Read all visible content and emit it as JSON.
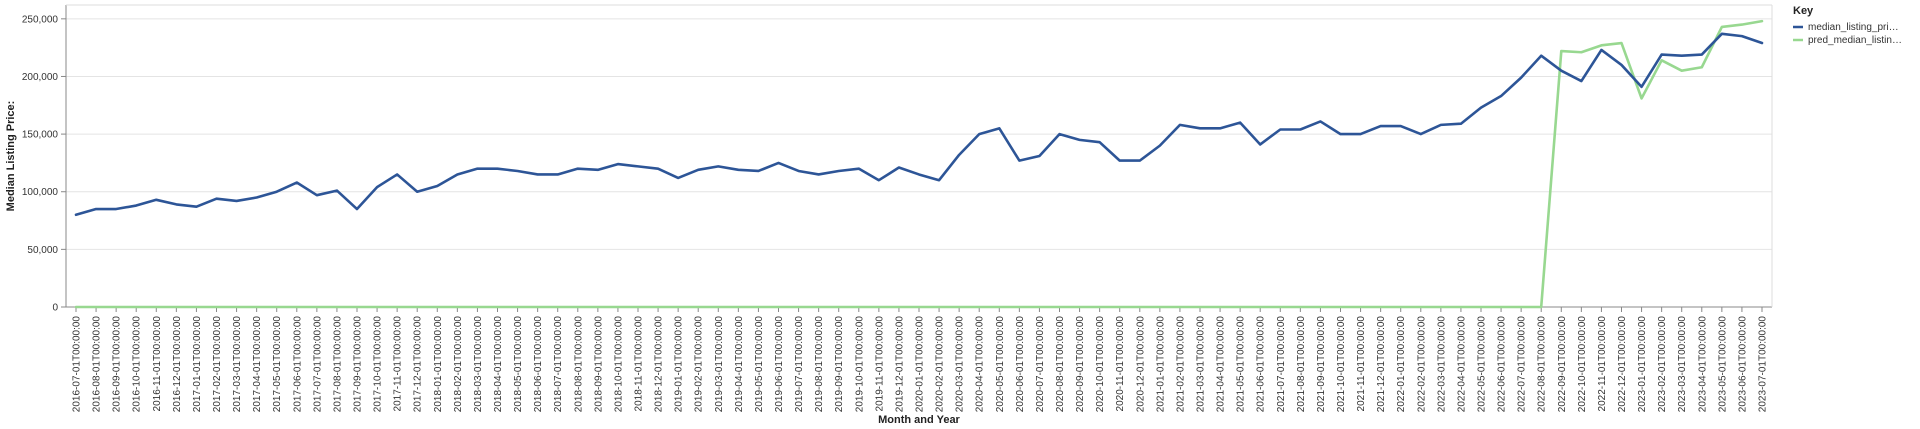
{
  "chart_data": {
    "type": "line",
    "xlabel": "Month and Year",
    "ylabel": "Median Listing Price:",
    "ylim": [
      0,
      262000
    ],
    "yticks": [
      0,
      50000,
      100000,
      150000,
      200000,
      250000
    ],
    "ytick_labels": [
      "0",
      "50,000",
      "100,000",
      "150,000",
      "200,000",
      "250,000"
    ],
    "grid": true,
    "legend": {
      "title": "Key",
      "placement": "top-right",
      "entries": [
        "median_listing_pri…",
        "pred_median_listin…"
      ]
    },
    "categories": [
      "2016-07-01T00:00:00",
      "2016-08-01T00:00:00",
      "2016-09-01T00:00:00",
      "2016-10-01T00:00:00",
      "2016-11-01T00:00:00",
      "2016-12-01T00:00:00",
      "2017-01-01T00:00:00",
      "2017-02-01T00:00:00",
      "2017-03-01T00:00:00",
      "2017-04-01T00:00:00",
      "2017-05-01T00:00:00",
      "2017-06-01T00:00:00",
      "2017-07-01T00:00:00",
      "2017-08-01T00:00:00",
      "2017-09-01T00:00:00",
      "2017-10-01T00:00:00",
      "2017-11-01T00:00:00",
      "2017-12-01T00:00:00",
      "2018-01-01T00:00:00",
      "2018-02-01T00:00:00",
      "2018-03-01T00:00:00",
      "2018-04-01T00:00:00",
      "2018-05-01T00:00:00",
      "2018-06-01T00:00:00",
      "2018-07-01T00:00:00",
      "2018-08-01T00:00:00",
      "2018-09-01T00:00:00",
      "2018-10-01T00:00:00",
      "2018-11-01T00:00:00",
      "2018-12-01T00:00:00",
      "2019-01-01T00:00:00",
      "2019-02-01T00:00:00",
      "2019-03-01T00:00:00",
      "2019-04-01T00:00:00",
      "2019-05-01T00:00:00",
      "2019-06-01T00:00:00",
      "2019-07-01T00:00:00",
      "2019-08-01T00:00:00",
      "2019-09-01T00:00:00",
      "2019-10-01T00:00:00",
      "2019-11-01T00:00:00",
      "2019-12-01T00:00:00",
      "2020-01-01T00:00:00",
      "2020-02-01T00:00:00",
      "2020-03-01T00:00:00",
      "2020-04-01T00:00:00",
      "2020-05-01T00:00:00",
      "2020-06-01T00:00:00",
      "2020-07-01T00:00:00",
      "2020-08-01T00:00:00",
      "2020-09-01T00:00:00",
      "2020-10-01T00:00:00",
      "2020-11-01T00:00:00",
      "2020-12-01T00:00:00",
      "2021-01-01T00:00:00",
      "2021-02-01T00:00:00",
      "2021-03-01T00:00:00",
      "2021-04-01T00:00:00",
      "2021-05-01T00:00:00",
      "2021-06-01T00:00:00",
      "2021-07-01T00:00:00",
      "2021-08-01T00:00:00",
      "2021-09-01T00:00:00",
      "2021-10-01T00:00:00",
      "2021-11-01T00:00:00",
      "2021-12-01T00:00:00",
      "2022-01-01T00:00:00",
      "2022-02-01T00:00:00",
      "2022-03-01T00:00:00",
      "2022-04-01T00:00:00",
      "2022-05-01T00:00:00",
      "2022-06-01T00:00:00",
      "2022-07-01T00:00:00",
      "2022-08-01T00:00:00",
      "2022-09-01T00:00:00",
      "2022-10-01T00:00:00",
      "2022-11-01T00:00:00",
      "2022-12-01T00:00:00",
      "2023-01-01T00:00:00",
      "2023-02-01T00:00:00",
      "2023-03-01T00:00:00",
      "2023-04-01T00:00:00",
      "2023-05-01T00:00:00",
      "2023-06-01T00:00:00",
      "2023-07-01T00:00:00"
    ],
    "series": [
      {
        "name": "median_listing_pri…",
        "color": "#2d5597",
        "values": [
          80000,
          85000,
          85000,
          88000,
          93000,
          89000,
          87000,
          94000,
          92000,
          95000,
          100000,
          108000,
          97000,
          101000,
          85000,
          104000,
          115000,
          100000,
          105000,
          115000,
          120000,
          120000,
          118000,
          115000,
          115000,
          120000,
          119000,
          124000,
          122000,
          120000,
          112000,
          119000,
          122000,
          119000,
          118000,
          125000,
          118000,
          115000,
          118000,
          120000,
          110000,
          121000,
          115000,
          110000,
          132000,
          150000,
          155000,
          127000,
          131000,
          150000,
          145000,
          143000,
          127000,
          127000,
          140000,
          158000,
          155000,
          155000,
          160000,
          141000,
          154000,
          154000,
          161000,
          150000,
          150000,
          157000,
          157000,
          150000,
          158000,
          159000,
          173000,
          183000,
          199000,
          218000,
          205000,
          196000,
          223000,
          210000,
          191000,
          219000,
          218000,
          219000,
          237000,
          235000,
          229000
        ]
      },
      {
        "name": "pred_median_listin…",
        "color": "#98d890",
        "values": [
          0,
          0,
          0,
          0,
          0,
          0,
          0,
          0,
          0,
          0,
          0,
          0,
          0,
          0,
          0,
          0,
          0,
          0,
          0,
          0,
          0,
          0,
          0,
          0,
          0,
          0,
          0,
          0,
          0,
          0,
          0,
          0,
          0,
          0,
          0,
          0,
          0,
          0,
          0,
          0,
          0,
          0,
          0,
          0,
          0,
          0,
          0,
          0,
          0,
          0,
          0,
          0,
          0,
          0,
          0,
          0,
          0,
          0,
          0,
          0,
          0,
          0,
          0,
          0,
          0,
          0,
          0,
          0,
          0,
          0,
          0,
          0,
          0,
          0,
          222000,
          221000,
          227000,
          229000,
          181000,
          214000,
          205000,
          208000,
          243000,
          245000,
          248000
        ]
      }
    ]
  }
}
